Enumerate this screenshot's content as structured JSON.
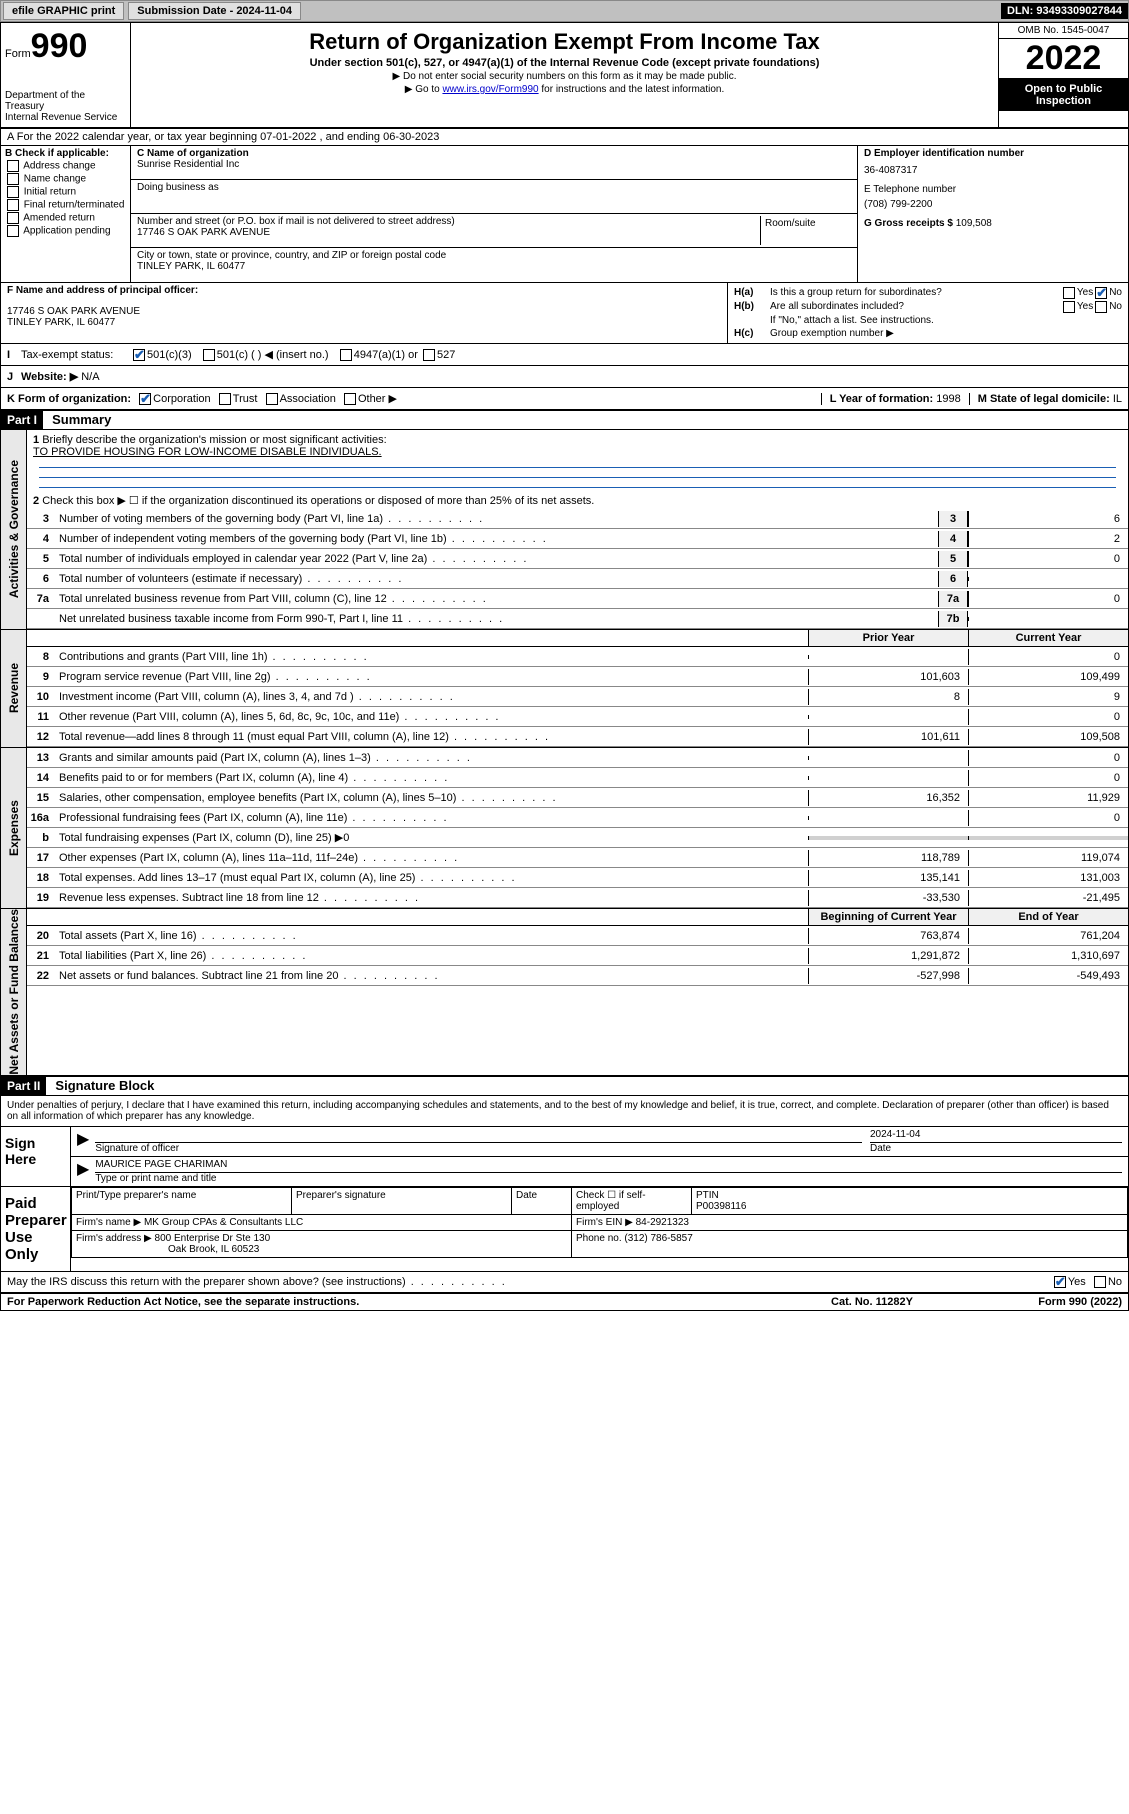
{
  "topbar": {
    "efile": "efile GRAPHIC print",
    "submission_label": "Submission Date - 2024-11-04",
    "dln": "DLN: 93493309027844"
  },
  "header": {
    "form_label": "Form",
    "form_number": "990",
    "dept": "Department of the Treasury",
    "irs": "Internal Revenue Service",
    "title": "Return of Organization Exempt From Income Tax",
    "subtitle": "Under section 501(c), 527, or 4947(a)(1) of the Internal Revenue Code (except private foundations)",
    "note1": "▶ Do not enter social security numbers on this form as it may be made public.",
    "note2_pre": "▶ Go to ",
    "note2_link": "www.irs.gov/Form990",
    "note2_post": " for instructions and the latest information.",
    "omb": "OMB No. 1545-0047",
    "year": "2022",
    "open": "Open to Public Inspection"
  },
  "rowA": "A For the 2022 calendar year, or tax year beginning 07-01-2022    , and ending 06-30-2023",
  "colB": {
    "title": "B Check if applicable:",
    "opts": [
      "Address change",
      "Name change",
      "Initial return",
      "Final return/terminated",
      "Amended return",
      "Application pending"
    ]
  },
  "colC": {
    "name_lbl": "C Name of organization",
    "name": "Sunrise Residential Inc",
    "dba_lbl": "Doing business as",
    "dba": "",
    "addr_lbl": "Number and street (or P.O. box if mail is not delivered to street address)",
    "room_lbl": "Room/suite",
    "addr": "17746 S OAK PARK AVENUE",
    "city_lbl": "City or town, state or province, country, and ZIP or foreign postal code",
    "city": "TINLEY PARK, IL  60477"
  },
  "colD": {
    "ein_lbl": "D Employer identification number",
    "ein": "36-4087317",
    "tel_lbl": "E Telephone number",
    "tel": "(708) 799-2200",
    "gross_lbl": "G Gross receipts $ ",
    "gross": "109,508"
  },
  "rowF": {
    "lbl": "F Name and address of principal officer:",
    "addr1": "17746 S OAK PARK AVENUE",
    "addr2": "TINLEY PARK, IL  60477"
  },
  "groupH": {
    "ha_lbl": "H(a)",
    "ha_txt": "Is this a group return for subordinates?",
    "hb_lbl": "H(b)",
    "hb_txt": "Are all subordinates included?",
    "hb_note": "If \"No,\" attach a list. See instructions.",
    "hc_lbl": "H(c)",
    "hc_txt": "Group exemption number ▶",
    "yes": "Yes",
    "no": "No"
  },
  "rowI": {
    "lbl": "I",
    "txt": "Tax-exempt status:",
    "o1": "501(c)(3)",
    "o2": "501(c) (   ) ◀ (insert no.)",
    "o3": "4947(a)(1) or",
    "o4": "527"
  },
  "rowJ": {
    "lbl": "J",
    "txt": "Website: ▶",
    "val": "N/A"
  },
  "rowK": {
    "lbl": "K Form of organization:",
    "o1": "Corporation",
    "o2": "Trust",
    "o3": "Association",
    "o4": "Other ▶",
    "l_lbl": "L Year of formation: ",
    "l_val": "1998",
    "m_lbl": "M State of legal domicile: ",
    "m_val": "IL"
  },
  "part1": {
    "hdr": "Part I",
    "title": "Summary",
    "vtab_gov": "Activities & Governance",
    "vtab_rev": "Revenue",
    "vtab_exp": "Expenses",
    "vtab_net": "Net Assets or Fund Balances",
    "l1_lbl": "1",
    "l1_txt": "Briefly describe the organization's mission or most significant activities:",
    "l1_val": "TO PROVIDE HOUSING FOR LOW-INCOME DISABLE INDIVIDUALS.",
    "l2_lbl": "2",
    "l2_txt": "Check this box ▶ ☐  if the organization discontinued its operations or disposed of more than 25% of its net assets.",
    "lines_gov": [
      {
        "n": "3",
        "t": "Number of voting members of the governing body (Part VI, line 1a)",
        "box": "3",
        "v": "6"
      },
      {
        "n": "4",
        "t": "Number of independent voting members of the governing body (Part VI, line 1b)",
        "box": "4",
        "v": "2"
      },
      {
        "n": "5",
        "t": "Total number of individuals employed in calendar year 2022 (Part V, line 2a)",
        "box": "5",
        "v": "0"
      },
      {
        "n": "6",
        "t": "Total number of volunteers (estimate if necessary)",
        "box": "6",
        "v": ""
      },
      {
        "n": "7a",
        "t": "Total unrelated business revenue from Part VIII, column (C), line 12",
        "box": "7a",
        "v": "0"
      },
      {
        "n": "",
        "t": "Net unrelated business taxable income from Form 990-T, Part I, line 11",
        "box": "7b",
        "v": ""
      }
    ],
    "col_prior": "Prior Year",
    "col_curr": "Current Year",
    "lines_rev": [
      {
        "n": "8",
        "t": "Contributions and grants (Part VIII, line 1h)",
        "p": "",
        "c": "0"
      },
      {
        "n": "9",
        "t": "Program service revenue (Part VIII, line 2g)",
        "p": "101,603",
        "c": "109,499"
      },
      {
        "n": "10",
        "t": "Investment income (Part VIII, column (A), lines 3, 4, and 7d )",
        "p": "8",
        "c": "9"
      },
      {
        "n": "11",
        "t": "Other revenue (Part VIII, column (A), lines 5, 6d, 8c, 9c, 10c, and 11e)",
        "p": "",
        "c": "0"
      },
      {
        "n": "12",
        "t": "Total revenue—add lines 8 through 11 (must equal Part VIII, column (A), line 12)",
        "p": "101,611",
        "c": "109,508"
      }
    ],
    "lines_exp": [
      {
        "n": "13",
        "t": "Grants and similar amounts paid (Part IX, column (A), lines 1–3)",
        "p": "",
        "c": "0"
      },
      {
        "n": "14",
        "t": "Benefits paid to or for members (Part IX, column (A), line 4)",
        "p": "",
        "c": "0"
      },
      {
        "n": "15",
        "t": "Salaries, other compensation, employee benefits (Part IX, column (A), lines 5–10)",
        "p": "16,352",
        "c": "11,929"
      },
      {
        "n": "16a",
        "t": "Professional fundraising fees (Part IX, column (A), line 11e)",
        "p": "",
        "c": "0"
      },
      {
        "n": "b",
        "t": "Total fundraising expenses (Part IX, column (D), line 25) ▶0",
        "p": "—",
        "c": "—"
      },
      {
        "n": "17",
        "t": "Other expenses (Part IX, column (A), lines 11a–11d, 11f–24e)",
        "p": "118,789",
        "c": "119,074"
      },
      {
        "n": "18",
        "t": "Total expenses. Add lines 13–17 (must equal Part IX, column (A), line 25)",
        "p": "135,141",
        "c": "131,003"
      },
      {
        "n": "19",
        "t": "Revenue less expenses. Subtract line 18 from line 12",
        "p": "-33,530",
        "c": "-21,495"
      }
    ],
    "col_begin": "Beginning of Current Year",
    "col_end": "End of Year",
    "lines_net": [
      {
        "n": "20",
        "t": "Total assets (Part X, line 16)",
        "p": "763,874",
        "c": "761,204"
      },
      {
        "n": "21",
        "t": "Total liabilities (Part X, line 26)",
        "p": "1,291,872",
        "c": "1,310,697"
      },
      {
        "n": "22",
        "t": "Net assets or fund balances. Subtract line 21 from line 20",
        "p": "-527,998",
        "c": "-549,493"
      }
    ]
  },
  "part2": {
    "hdr": "Part II",
    "title": "Signature Block",
    "decl": "Under penalties of perjury, I declare that I have examined this return, including accompanying schedules and statements, and to the best of my knowledge and belief, it is true, correct, and complete. Declaration of preparer (other than officer) is based on all information of which preparer has any knowledge.",
    "sign_here": "Sign Here",
    "sig_officer_lbl": "Signature of officer",
    "sig_date_lbl": "Date",
    "sig_date": "2024-11-04",
    "sig_name": "MAURICE PAGE CHARIMAN",
    "sig_name_lbl": "Type or print name and title",
    "paid": "Paid Preparer Use Only",
    "prep_name_lbl": "Print/Type preparer's name",
    "prep_sig_lbl": "Preparer's signature",
    "prep_date_lbl": "Date",
    "prep_check_lbl": "Check ☐ if self-employed",
    "ptin_lbl": "PTIN",
    "ptin": "P00398116",
    "firm_name_lbl": "Firm's name    ▶ ",
    "firm_name": "MK Group CPAs & Consultants LLC",
    "firm_ein_lbl": "Firm's EIN ▶ ",
    "firm_ein": "84-2921323",
    "firm_addr_lbl": "Firm's address ▶ ",
    "firm_addr1": "800 Enterprise Dr Ste 130",
    "firm_addr2": "Oak Brook, IL  60523",
    "phone_lbl": "Phone no. ",
    "phone": "(312) 786-5857",
    "discuss": "May the IRS discuss this return with the preparer shown above? (see instructions)"
  },
  "footer": {
    "l": "For Paperwork Reduction Act Notice, see the separate instructions.",
    "c": "Cat. No. 11282Y",
    "r": "Form 990 (2022)"
  }
}
